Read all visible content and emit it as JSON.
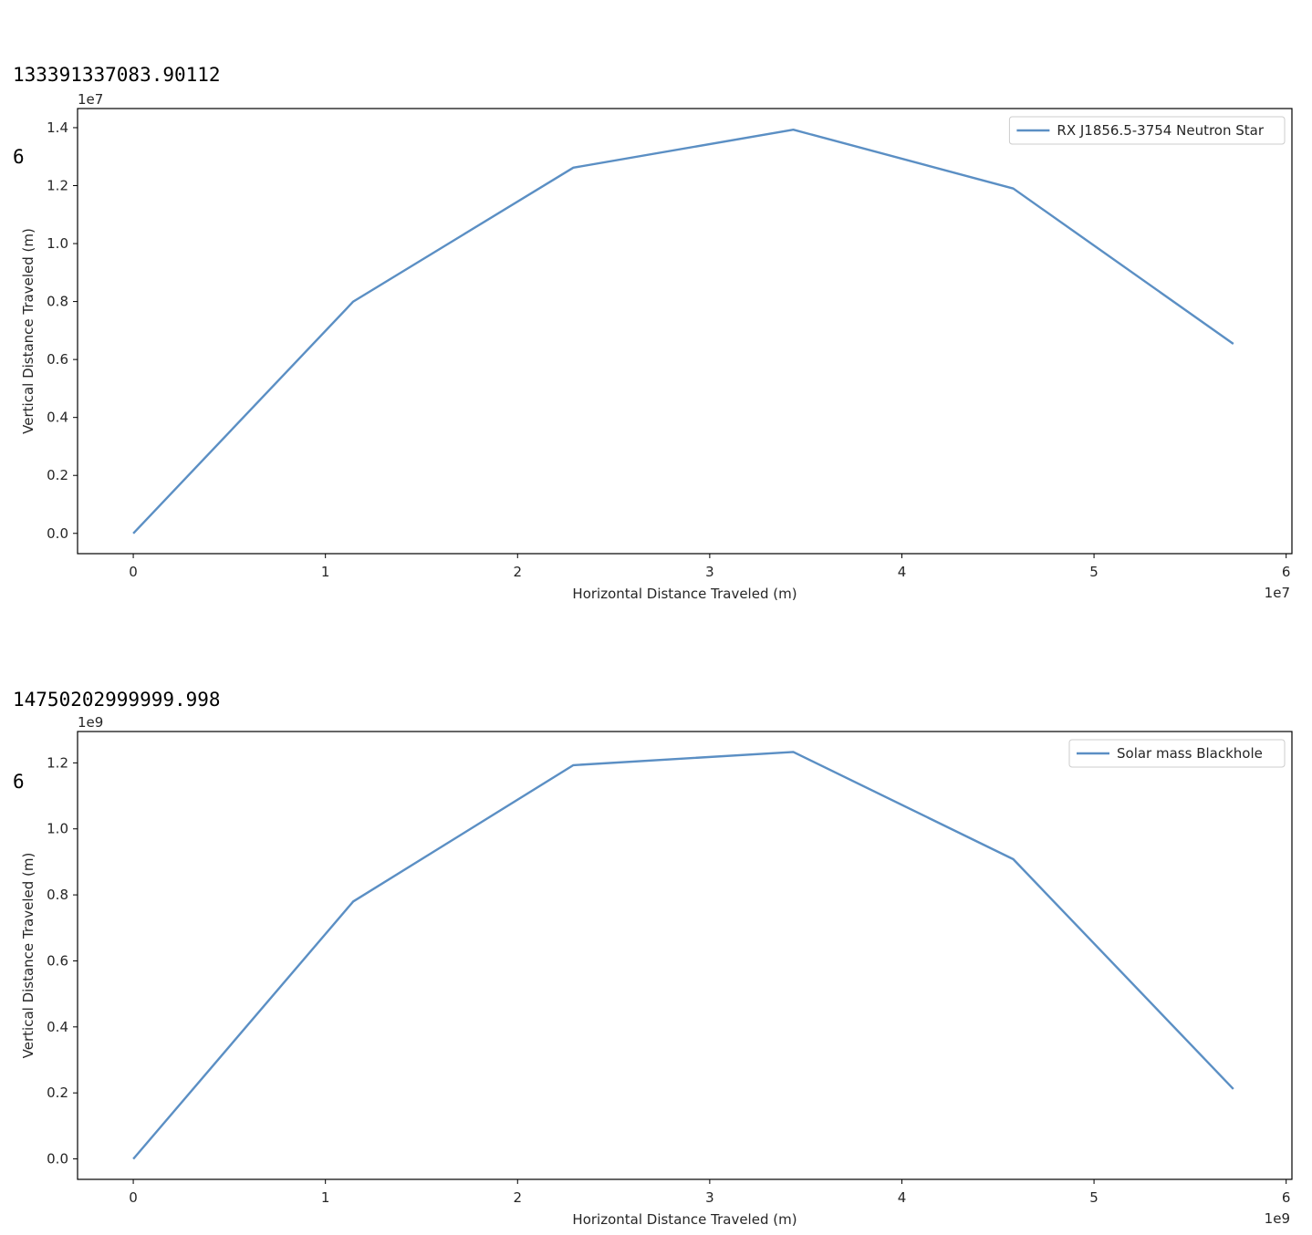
{
  "outputs": [
    {
      "value": "133391337083.90112",
      "count": "6"
    },
    {
      "value": "14750202999999.998",
      "count": "6"
    }
  ],
  "line_color": "#5b8fc4",
  "chart_data": [
    {
      "type": "line",
      "title": "",
      "xlabel": "Horizontal Distance Traveled (m)",
      "ylabel": "Vertical Distance Traveled (m)",
      "x_offset_text": "1e7",
      "y_offset_text": "1e7",
      "xlim": [
        -2900000.0,
        60300000.0
      ],
      "ylim": [
        -700000.0,
        14660000.0
      ],
      "xticks": [
        0,
        10000000.0,
        20000000.0,
        30000000.0,
        40000000.0,
        50000000.0,
        60000000.0
      ],
      "xtick_labels": [
        "0",
        "1",
        "2",
        "3",
        "4",
        "5",
        "6"
      ],
      "yticks": [
        0,
        2000000.0,
        4000000.0,
        6000000.0,
        8000000.0,
        10000000.0,
        12000000.0,
        14000000.0
      ],
      "ytick_labels": [
        "0.0",
        "0.2",
        "0.4",
        "0.6",
        "0.8",
        "1.0",
        "1.2",
        "1.4"
      ],
      "legend_position": "top-right",
      "series": [
        {
          "name": "RX J1856.5-3754 Neutron Star",
          "x": [
            0,
            11450000.0,
            22900000.0,
            34350000.0,
            45800000.0,
            57250000.0
          ],
          "y": [
            0,
            8000000.0,
            12620000.0,
            13930000.0,
            11900000.0,
            6540000.0
          ]
        }
      ]
    },
    {
      "type": "line",
      "title": "",
      "xlabel": "Horizontal Distance Traveled (m)",
      "ylabel": "Vertical Distance Traveled (m)",
      "x_offset_text": "1e9",
      "y_offset_text": "1e9",
      "xlim": [
        -290000000.0,
        6030000000.0
      ],
      "ylim": [
        -62000000.0,
        1295000000.0
      ],
      "xticks": [
        0,
        1000000000.0,
        2000000000.0,
        3000000000.0,
        4000000000.0,
        5000000000.0,
        6000000000.0
      ],
      "xtick_labels": [
        "0",
        "1",
        "2",
        "3",
        "4",
        "5",
        "6"
      ],
      "yticks": [
        0,
        200000000.0,
        400000000.0,
        600000000.0,
        800000000.0,
        1000000000.0,
        1200000000.0
      ],
      "ytick_labels": [
        "0.0",
        "0.2",
        "0.4",
        "0.6",
        "0.8",
        "1.0",
        "1.2"
      ],
      "legend_position": "top-right",
      "series": [
        {
          "name": "Solar mass Blackhole",
          "x": [
            0,
            1145000000.0,
            2290000000.0,
            3435000000.0,
            4580000000.0,
            5725000000.0
          ],
          "y": [
            0,
            780000000.0,
            1193000000.0,
            1233000000.0,
            908000000.0,
            212000000.0
          ]
        }
      ]
    }
  ]
}
